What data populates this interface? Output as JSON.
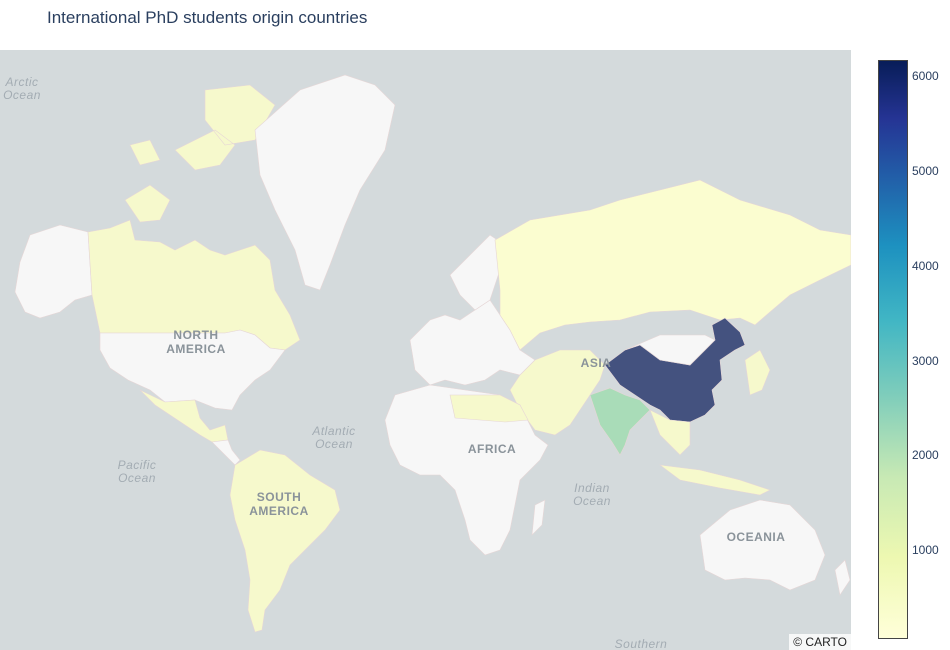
{
  "title": "International PhD students origin countries",
  "attribution": "© CARTO",
  "ocean_labels": {
    "arctic": "Arctic\nOcean",
    "atlantic": "Atlantic\nOcean",
    "pacific": "Pacific\nOcean",
    "indian": "Indian\nOcean",
    "southern": "Southern"
  },
  "continent_labels": {
    "north_america": "NORTH\nAMERICA",
    "south_america": "SOUTH\nAMERICA",
    "africa": "AFRICA",
    "asia": "ASIA",
    "oceania": "OCEANIA"
  },
  "colorbar": {
    "colorscale": "YlGnBu",
    "min": 0,
    "max": 6200,
    "ticks": [
      "6000",
      "5000",
      "4000",
      "3000",
      "2000",
      "1000"
    ]
  },
  "colors": {
    "no_data_land": "#f7f7f7",
    "water": "#d4dadc",
    "low": "#fbfdd0",
    "low_mid": "#f1f9bf",
    "india": "#a9dcb8",
    "china": "#44527f"
  }
}
